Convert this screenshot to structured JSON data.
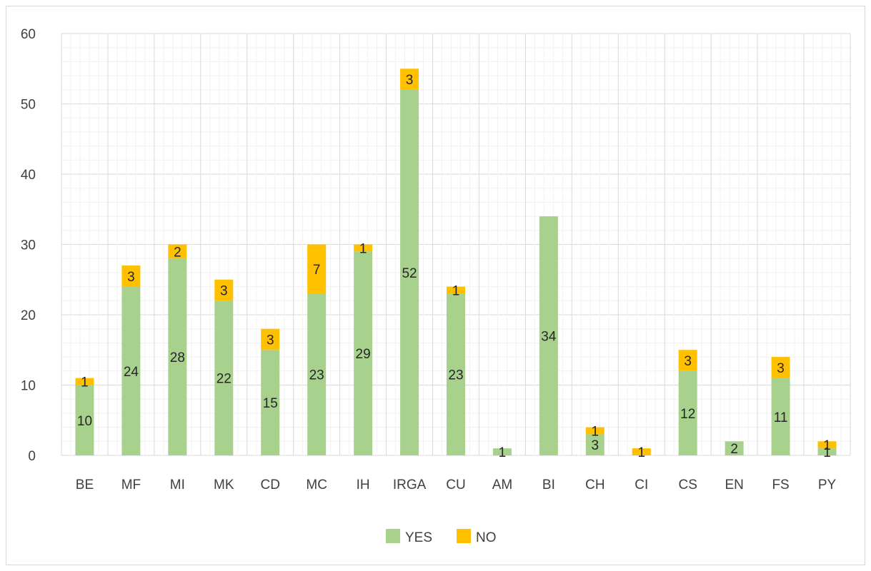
{
  "chart_data": {
    "type": "bar",
    "stacked": true,
    "categories": [
      "BE",
      "MF",
      "MI",
      "MK",
      "CD",
      "MC",
      "IH",
      "IRGA",
      "CU",
      "AM",
      "BI",
      "CH",
      "CI",
      "CS",
      "EN",
      "FS",
      "PY"
    ],
    "series": [
      {
        "name": "YES",
        "color": "#a9d18e",
        "values": [
          10,
          24,
          28,
          22,
          15,
          23,
          29,
          52,
          23,
          1,
          34,
          3,
          0,
          12,
          2,
          11,
          1
        ],
        "labels": [
          "10",
          "24",
          "28",
          "22",
          "15",
          "23",
          "29",
          "52",
          "23",
          "1",
          "34",
          "3",
          "",
          "12",
          "2",
          "11",
          "1"
        ]
      },
      {
        "name": "NO",
        "color": "#ffc000",
        "values": [
          1,
          3,
          2,
          3,
          3,
          7,
          1,
          3,
          1,
          0,
          0,
          1,
          1,
          3,
          0,
          3,
          1
        ],
        "labels": [
          "1",
          "3",
          "2",
          "3",
          "3",
          "7",
          "1",
          "3",
          "1",
          "",
          "",
          "1",
          "1",
          "3",
          "",
          "3",
          "1"
        ]
      }
    ],
    "ylim": [
      0,
      60
    ],
    "yticks": [
      0,
      10,
      20,
      30,
      40,
      50,
      60
    ],
    "minor_grid_step": 2,
    "grid": true,
    "legend_position": "bottom",
    "title": "",
    "xlabel": "",
    "ylabel": ""
  }
}
